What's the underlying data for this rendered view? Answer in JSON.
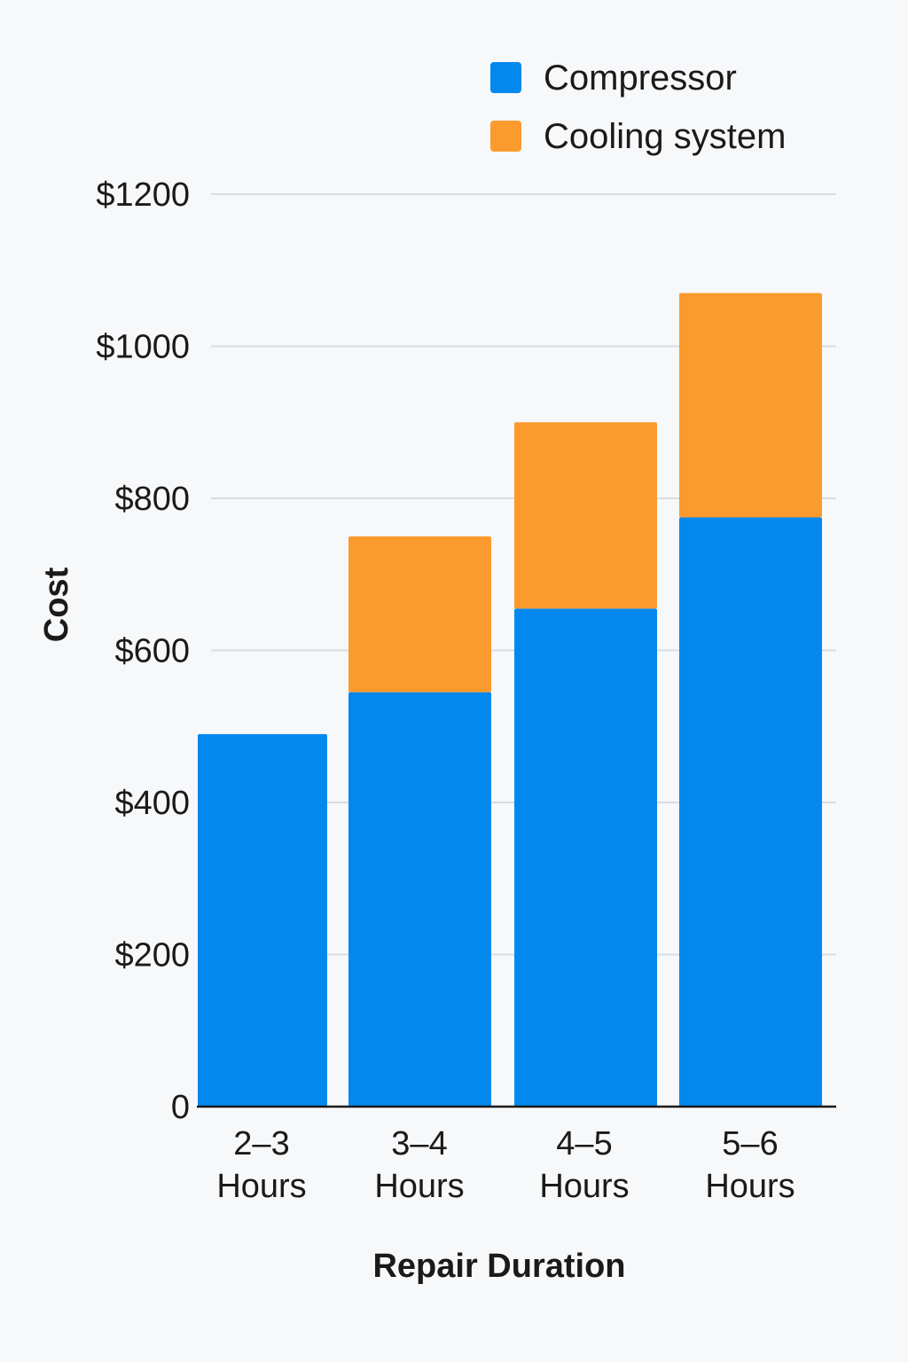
{
  "chart_data": {
    "type": "bar",
    "stacked": true,
    "categories": [
      [
        "2–3",
        "Hours"
      ],
      [
        "3–4",
        "Hours"
      ],
      [
        "4–5",
        "Hours"
      ],
      [
        "5–6",
        "Hours"
      ]
    ],
    "series": [
      {
        "name": "Compressor",
        "color": "#0388ed",
        "values": [
          490,
          545,
          655,
          775
        ]
      },
      {
        "name": "Cooling system",
        "color": "#fb9a2d",
        "values": [
          0,
          205,
          245,
          295
        ]
      }
    ],
    "xlabel": "Repair Duration",
    "ylabel": "Cost",
    "ylim": [
      0,
      1200
    ],
    "yticks": [
      0,
      200,
      400,
      600,
      800,
      1000,
      1200
    ],
    "ytick_labels": [
      "0",
      "$200",
      "$400",
      "$600",
      "$800",
      "$1000",
      "$1200"
    ],
    "grid": true,
    "legend_position": "top-right"
  }
}
